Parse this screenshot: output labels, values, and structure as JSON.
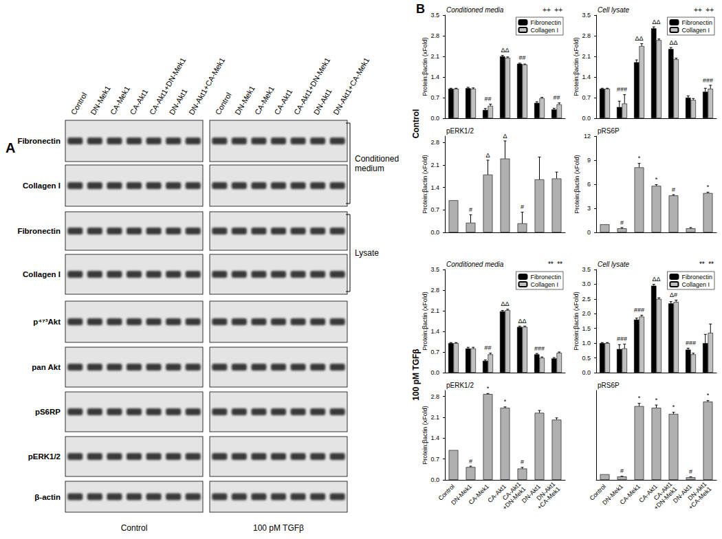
{
  "blot": {
    "panel": "A",
    "lanes": [
      "Control",
      "DN-Mek1",
      "CA-Mek1",
      "CA-Akt1",
      "CA-Akt1+DN-Mek1",
      "DN-Akt1",
      "DN-Akt1+CA-Mek1"
    ],
    "conditions": [
      "Control",
      "100 pM TGFβ"
    ],
    "rows": [
      "Fibronectin",
      "Collagen I",
      "Fibronectin",
      "Collagen I",
      "p⁴⁷³Akt",
      "pan Akt",
      "pS6RP",
      "pERK1/2",
      "β-actin"
    ],
    "brackets": [
      {
        "label": "Conditioned medium",
        "first_row": 0,
        "last_row": 1
      },
      {
        "label": "Lysate",
        "first_row": 2,
        "last_row": 3
      }
    ]
  },
  "panel_b": "B",
  "groups": [
    "Control",
    "100 pM TGFβ"
  ],
  "chart_data": [
    {
      "type": "bar",
      "title": "Conditioned media",
      "y_label": "Protein:βactin (xFold)",
      "categories": [
        "Control",
        "DN-Mek1",
        "CA-Mek1",
        "CA-Akt1",
        "CA-Akt1\n+DN-Mek1",
        "DN-Akt1",
        "DN-Akt1\n+CA-Mek1"
      ],
      "series": [
        {
          "name": "Fibronectin",
          "color": "#000000",
          "values": [
            1,
            1.02,
            0.28,
            2.1,
            1.85,
            0.52,
            0.3
          ],
          "errors": [
            0.02,
            0.03,
            0.05,
            0.03,
            0.02,
            0.04,
            0.04
          ]
        },
        {
          "name": "Collagen I",
          "color": "#c0c0c0",
          "values": [
            1,
            1.0,
            0.42,
            2.05,
            1.82,
            0.68,
            0.47
          ],
          "errors": [
            0.02,
            0.03,
            0.06,
            0.03,
            0.02,
            0.03,
            0.05
          ]
        }
      ],
      "ylim": [
        0,
        3.5
      ],
      "yticks": [
        {
          "value": 0,
          "label": "0.0"
        },
        {
          "value": 0.7,
          "label": "0.7"
        },
        {
          "value": 1.4,
          "label": "1.4"
        },
        {
          "value": 2.1,
          "label": "2.1"
        },
        {
          "value": 2.8,
          "label": "2.8"
        },
        {
          "value": 3.5,
          "label": "3.5"
        }
      ],
      "legend": "upper right",
      "tick_labels": "y",
      "annotations": [
        {
          "category": "CA-Mek1",
          "text": "##"
        },
        {
          "category": "CA-Akt1",
          "text": "ΔΔ"
        },
        {
          "category": "CA-Akt1\n+DN-Mek1",
          "text": "##"
        },
        {
          "category": "DN-Akt1\n+CA-Mek1",
          "text": "##"
        }
      ],
      "bracket_text": "++  ++"
    },
    {
      "type": "bar",
      "title": "Cell lysate",
      "y_label": "Protein:βactin (xFold)",
      "categories": [
        "Control",
        "DN-Mek1",
        "CA-Mek1",
        "CA-Akt1",
        "CA-Akt1\n+DN-Mek1",
        "DN-Akt1",
        "DN-Akt1\n+CA-Mek1"
      ],
      "series": [
        {
          "name": "Fibronectin",
          "color": "#000000",
          "values": [
            1,
            0.38,
            1.9,
            3.05,
            2.35,
            0.7,
            0.9
          ],
          "errors": [
            0.02,
            0.2,
            0.08,
            0.05,
            0.05,
            0.06,
            0.12
          ]
        },
        {
          "name": "Collagen I",
          "color": "#c0c0c0",
          "values": [
            1,
            0.5,
            2.45,
            2.65,
            2.0,
            0.62,
            1.0
          ],
          "errors": [
            0.02,
            0.3,
            0.08,
            0.04,
            0.04,
            0.05,
            0.12
          ]
        }
      ],
      "ylim": [
        0,
        3.5
      ],
      "yticks": [
        {
          "value": 0,
          "label": "0.0"
        },
        {
          "value": 0.7,
          "label": "0.7"
        },
        {
          "value": 1.4,
          "label": "1.4"
        },
        {
          "value": 2.1,
          "label": "2.1"
        },
        {
          "value": 2.8,
          "label": "2.8"
        },
        {
          "value": 3.5,
          "label": "3.5"
        }
      ],
      "legend": "upper right",
      "tick_labels": "y",
      "annotations": [
        {
          "category": "DN-Mek1",
          "text": "###"
        },
        {
          "category": "CA-Mek1",
          "text": "ΔΔ"
        },
        {
          "category": "CA-Akt1",
          "text": "ΔΔ"
        },
        {
          "category": "CA-Akt1\n+DN-Mek1",
          "text": "ΔΔ"
        },
        {
          "category": "DN-Akt1\n+CA-Mek1",
          "text": "###"
        }
      ],
      "bracket_text": "++  ++"
    },
    {
      "type": "bar",
      "title": "pERK1/2",
      "y_label": "Protein:βactin (xFold)",
      "categories": [
        "Control",
        "DN-Mek1",
        "CA-Mek1",
        "CA-Akt1",
        "CA-Akt1\n+DN-Mek1",
        "DN-Akt1",
        "DN-Akt1\n+CA-Mek1"
      ],
      "color": "#b0b0b0",
      "values": [
        1,
        0.3,
        1.8,
        2.3,
        0.28,
        1.65,
        1.68
      ],
      "errors": [
        0,
        0.25,
        0.45,
        0.55,
        0.35,
        0.7,
        0.2
      ],
      "ylim": [
        0,
        3.0
      ],
      "yticks": [
        {
          "value": 0,
          "label": "0.0"
        },
        {
          "value": 0.7,
          "label": "0.7"
        },
        {
          "value": 1.4,
          "label": "1.4"
        },
        {
          "value": 2.1,
          "label": "2.1"
        },
        {
          "value": 2.8,
          "label": "2.8"
        }
      ],
      "tick_labels": "y",
      "annotations": [
        {
          "category": "DN-Mek1",
          "text": "#"
        },
        {
          "category": "CA-Mek1",
          "text": "Δ"
        },
        {
          "category": "CA-Akt1",
          "text": "Δ"
        },
        {
          "category": "CA-Akt1\n+DN-Mek1",
          "text": "#"
        }
      ]
    },
    {
      "type": "bar",
      "title": "pRS6P",
      "y_label": "Protein:βactin (xFold)",
      "categories": [
        "Control",
        "DN-Mek1",
        "CA-Mek1",
        "CA-Akt1",
        "CA-Akt1\n+DN-Mek1",
        "DN-Akt1",
        "DN-Akt1\n+CA-Mek1"
      ],
      "color": "#b0b0b0",
      "values": [
        1,
        0.5,
        8.1,
        5.8,
        4.6,
        0.5,
        4.9
      ],
      "errors": [
        0,
        0.1,
        0.5,
        0.15,
        0.1,
        0.1,
        0.1
      ],
      "ylim": [
        0,
        12
      ],
      "yticks": [
        0,
        3,
        6,
        9,
        12
      ],
      "tick_labels": "y",
      "annotations": [
        {
          "category": "DN-Mek1",
          "text": "#"
        },
        {
          "category": "CA-Mek1",
          "text": "*"
        },
        {
          "category": "CA-Akt1",
          "text": "*"
        },
        {
          "category": "CA-Akt1\n+DN-Mek1",
          "text": "#"
        },
        {
          "category": "DN-Akt1\n+CA-Mek1",
          "text": "*"
        }
      ]
    },
    {
      "type": "bar",
      "title": "Conditioned media",
      "y_label": "Protein:βactin (xFold)",
      "categories": [
        "Control",
        "DN-Mek1",
        "CA-Mek1",
        "CA-Akt1",
        "CA-Akt1\n+DN-Mek1",
        "DN-Akt1",
        "DN-Akt1\n+CA-Mek1"
      ],
      "series": [
        {
          "name": "Fibronectin",
          "color": "#000000",
          "values": [
            1,
            0.82,
            0.4,
            2.08,
            1.55,
            0.62,
            0.48
          ],
          "errors": [
            0.02,
            0.04,
            0.03,
            0.03,
            0.03,
            0.03,
            0.03
          ]
        },
        {
          "name": "Collagen I",
          "color": "#c0c0c0",
          "values": [
            1,
            0.82,
            0.62,
            2.12,
            1.55,
            0.5,
            0.67
          ],
          "errors": [
            0.02,
            0.04,
            0.04,
            0.03,
            0.03,
            0.03,
            0.03
          ]
        }
      ],
      "ylim": [
        0,
        3.5
      ],
      "yticks": [
        {
          "value": 0,
          "label": "0.0"
        },
        {
          "value": 0.7,
          "label": "0.7"
        },
        {
          "value": 1.4,
          "label": "1.4"
        },
        {
          "value": 2.1,
          "label": "2.1"
        },
        {
          "value": 2.8,
          "label": "2.8"
        },
        {
          "value": 3.5,
          "label": "3.5"
        }
      ],
      "legend": "upper right",
      "tick_labels": "y",
      "annotations": [
        {
          "category": "CA-Mek1",
          "text": "##"
        },
        {
          "category": "CA-Akt1",
          "text": "ΔΔ"
        },
        {
          "category": "CA-Akt1\n+DN-Mek1",
          "text": "ΔΔ"
        },
        {
          "category": "DN-Akt1",
          "text": "###"
        }
      ],
      "bracket_text": "**  **"
    },
    {
      "type": "bar",
      "title": "Cell lysate",
      "y_label": "Protein:βactin (xFold)",
      "categories": [
        "Control",
        "DN-Mek1",
        "CA-Mek1",
        "CA-Akt1",
        "CA-Akt1\n+DN-Mek1",
        "DN-Akt1",
        "DN-Akt1\n+CA-Mek1"
      ],
      "series": [
        {
          "name": "Fibronectin",
          "color": "#000000",
          "values": [
            1,
            0.8,
            1.8,
            2.95,
            2.35,
            0.78,
            1.0
          ],
          "errors": [
            0.02,
            0.15,
            0.05,
            0.05,
            0.06,
            0.05,
            0.3
          ]
        },
        {
          "name": "Collagen I",
          "color": "#c0c0c0",
          "values": [
            1,
            0.82,
            1.9,
            2.5,
            2.4,
            0.62,
            1.35
          ],
          "errors": [
            0.02,
            0.15,
            0.05,
            0.04,
            0.06,
            0.04,
            0.3
          ]
        }
      ],
      "ylim": [
        0,
        3.5
      ],
      "yticks": [
        {
          "value": 0,
          "label": "0.0"
        },
        {
          "value": 0.5,
          "label": "0.5"
        },
        {
          "value": 1.0,
          "label": "1.0"
        },
        {
          "value": 1.5,
          "label": "1.5"
        },
        {
          "value": 2.0,
          "label": "2.0"
        },
        {
          "value": 2.5,
          "label": "2.5"
        },
        {
          "value": 3.0,
          "label": "3.0"
        },
        {
          "value": 3.5,
          "label": "3.5"
        }
      ],
      "legend": "upper right",
      "tick_labels": "y",
      "annotations": [
        {
          "category": "DN-Mek1",
          "text": "###"
        },
        {
          "category": "CA-Mek1",
          "text": "###"
        },
        {
          "category": "CA-Akt1",
          "text": "ΔΔ"
        },
        {
          "category": "CA-Akt1\n+DN-Mek1",
          "text": "Δ#"
        },
        {
          "category": "DN-Akt1",
          "text": "###"
        }
      ],
      "bracket_text": "**  **"
    },
    {
      "type": "bar",
      "title": "pERK1/2",
      "y_label": "Protein:βactin (xFold)",
      "categories": [
        "Control",
        "DN-Mek1",
        "CA-Mek1",
        "CA-Akt1",
        "CA-Akt1\n+DN-Mek1",
        "DN-Akt1",
        "DN-Akt1\n+CA-Mek1"
      ],
      "color": "#b0b0b0",
      "values": [
        1,
        0.43,
        2.88,
        2.42,
        0.38,
        2.25,
        2.02
      ],
      "errors": [
        0,
        0.03,
        0.02,
        0.03,
        0.04,
        0.08,
        0.06
      ],
      "ylim": [
        0,
        3.0
      ],
      "yticks": [
        {
          "value": 0,
          "label": "0.0"
        },
        {
          "value": 0.7,
          "label": "0.7"
        },
        {
          "value": 1.4,
          "label": "1.4"
        },
        {
          "value": 2.1,
          "label": "2.1"
        },
        {
          "value": 2.8,
          "label": "2.8"
        }
      ],
      "annotations": [
        {
          "category": "DN-Mek1",
          "text": "#"
        },
        {
          "category": "CA-Mek1",
          "text": "*"
        },
        {
          "category": "CA-Akt1",
          "text": "*"
        },
        {
          "category": "CA-Akt1\n+DN-Mek1",
          "text": "#"
        }
      ]
    },
    {
      "type": "bar",
      "title": "pRS6P",
      "categories": [
        "Control",
        "DN-Mek1",
        "CA-Mek1",
        "CA-Akt1",
        "CA-Akt1\n+DN-Mek1",
        "DN-Akt1",
        "DN-Akt1\n+CA-Mek1"
      ],
      "color": "#b0b0b0",
      "values": [
        1,
        0.6,
        13.2,
        12.9,
        11.8,
        0.45,
        14.0
      ],
      "errors": [
        0,
        0.05,
        0.5,
        0.5,
        0.3,
        0.1,
        0.2
      ],
      "ylim": [
        0,
        16
      ],
      "yticks": [],
      "tick_labels": "x",
      "annotations": [
        {
          "category": "DN-Mek1",
          "text": "#"
        },
        {
          "category": "CA-Mek1",
          "text": "*"
        },
        {
          "category": "CA-Akt1",
          "text": "*"
        },
        {
          "category": "CA-Akt1\n+DN-Mek1",
          "text": "*"
        },
        {
          "category": "DN-Akt1",
          "text": "#"
        },
        {
          "category": "DN-Akt1\n+CA-Mek1",
          "text": "*"
        }
      ]
    }
  ]
}
